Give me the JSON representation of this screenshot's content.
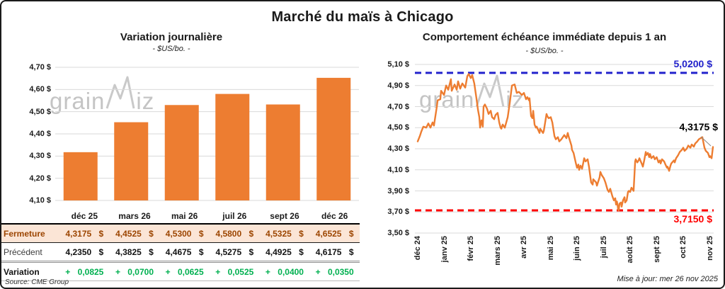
{
  "title": "Marché du maïs à Chicago",
  "source_note": "Source: CME Group",
  "updated_note": "Mise à jour: mer 26 nov 2025",
  "watermark": {
    "prefix": "grain",
    "suffix": "iz"
  },
  "colors": {
    "orange": "#ED7D31",
    "peach_bg": "#FBE5D6",
    "brown": "#9C4500",
    "green": "#00B050",
    "blue": "#2222CC",
    "red": "#FF0000",
    "grid": "#DADADA"
  },
  "table": {
    "columns": [
      "déc 25",
      "mars 26",
      "mai 26",
      "juil 26",
      "sept 26",
      "déc 26"
    ],
    "rows": [
      {
        "key": "fermeture",
        "label": "Fermeture",
        "values": [
          "4,3175 $",
          "4,4525 $",
          "4,5300 $",
          "4,5800 $",
          "4,5325 $",
          "4,6525 $"
        ]
      },
      {
        "key": "precedent",
        "label": "Précédent",
        "values": [
          "4,2350 $",
          "4,3825 $",
          "4,4675 $",
          "4,5275 $",
          "4,4925 $",
          "4,6175 $"
        ]
      },
      {
        "key": "variation",
        "label": "Variation",
        "values": [
          "+ 0,0825",
          "+ 0,0700",
          "+ 0,0625",
          "+ 0,0525",
          "+ 0,0400",
          "+ 0,0350"
        ]
      }
    ]
  },
  "chart_data": [
    {
      "type": "bar",
      "title": "Variation journalière",
      "subtitle": "- $US/bo. -",
      "categories": [
        "déc 25",
        "mars 26",
        "mai 26",
        "juil 26",
        "sept 26",
        "déc 26"
      ],
      "values": [
        4.3175,
        4.4525,
        4.53,
        4.58,
        4.5325,
        4.6525
      ],
      "ylim": [
        4.1,
        4.7
      ],
      "ytick_step": 0.1,
      "ytick_labels": [
        "4,70 $",
        "4,60 $",
        "4,50 $",
        "4,40 $",
        "4,30 $",
        "4,20 $",
        "4,10 $"
      ],
      "bar_color": "#ED7D31",
      "grid": true,
      "legend": "none"
    },
    {
      "type": "line",
      "title": "Comportement échéance immédiate depuis 1 an",
      "subtitle": "- $US/bo. -",
      "x_labels": [
        "déc 24",
        "janv 25",
        "févr 25",
        "mars 25",
        "avr 25",
        "mai 25",
        "juin 25",
        "juil 25",
        "août 25",
        "sept 25",
        "oct 25",
        "nov 25"
      ],
      "ylim": [
        3.5,
        5.1
      ],
      "ytick_step": 0.2,
      "ytick_labels": [
        "5,10 $",
        "4,90 $",
        "4,70 $",
        "4,50 $",
        "4,30 $",
        "4,10 $",
        "3,90 $",
        "3,70 $",
        "3,50 $"
      ],
      "hline_top": {
        "value": 5.02,
        "label": "5,0200 $",
        "color": "#2222CC",
        "style": "dashed"
      },
      "hline_bottom": {
        "value": 3.715,
        "label": "3,7150 $",
        "color": "#FF0000",
        "style": "dashed"
      },
      "last_point": {
        "value": 4.3175,
        "label": "4,3175 $"
      },
      "grid": true,
      "legend": "none",
      "series": [
        {
          "name": "échéance immédiate",
          "color": "#ED7D31",
          "points": [
            [
              0,
              4.37
            ],
            [
              0.08,
              4.42
            ],
            [
              0.13,
              4.46
            ],
            [
              0.21,
              4.51
            ],
            [
              0.32,
              4.5
            ],
            [
              0.4,
              4.54
            ],
            [
              0.48,
              4.5
            ],
            [
              0.56,
              4.55
            ],
            [
              0.61,
              4.52
            ],
            [
              0.72,
              4.7
            ],
            [
              0.75,
              4.76
            ],
            [
              0.85,
              4.77
            ],
            [
              0.88,
              4.85
            ],
            [
              0.99,
              4.81
            ],
            [
              1.07,
              4.9
            ],
            [
              1.15,
              4.86
            ],
            [
              1.25,
              4.96
            ],
            [
              1.28,
              4.85
            ],
            [
              1.39,
              4.91
            ],
            [
              1.47,
              4.86
            ],
            [
              1.52,
              4.94
            ],
            [
              1.6,
              4.87
            ],
            [
              1.68,
              4.92
            ],
            [
              1.79,
              4.88
            ],
            [
              1.87,
              4.99
            ],
            [
              1.92,
              5.01
            ],
            [
              2,
              4.97
            ],
            [
              2.05,
              5.0
            ],
            [
              2.13,
              4.92
            ],
            [
              2.21,
              4.78
            ],
            [
              2.27,
              4.67
            ],
            [
              2.32,
              4.6
            ],
            [
              2.35,
              4.5
            ],
            [
              2.4,
              4.57
            ],
            [
              2.45,
              4.51
            ],
            [
              2.48,
              4.7
            ],
            [
              2.53,
              4.72
            ],
            [
              2.61,
              4.68
            ],
            [
              2.67,
              4.63
            ],
            [
              2.75,
              4.66
            ],
            [
              2.8,
              4.6
            ],
            [
              2.88,
              4.58
            ],
            [
              2.93,
              4.62
            ],
            [
              3.01,
              4.64
            ],
            [
              3.07,
              4.55
            ],
            [
              3.12,
              4.5
            ],
            [
              3.15,
              4.49
            ],
            [
              3.2,
              4.53
            ],
            [
              3.28,
              4.5
            ],
            [
              3.39,
              4.6
            ],
            [
              3.47,
              4.74
            ],
            [
              3.55,
              4.9
            ],
            [
              3.65,
              4.91
            ],
            [
              3.73,
              4.83
            ],
            [
              3.81,
              4.84
            ],
            [
              3.92,
              4.81
            ],
            [
              4,
              4.83
            ],
            [
              4.08,
              4.77
            ],
            [
              4.13,
              4.79
            ],
            [
              4.19,
              4.76
            ],
            [
              4.21,
              4.78
            ],
            [
              4.27,
              4.61
            ],
            [
              4.32,
              4.59
            ],
            [
              4.35,
              4.66
            ],
            [
              4.4,
              4.53
            ],
            [
              4.45,
              4.5
            ],
            [
              4.48,
              4.51
            ],
            [
              4.59,
              4.45
            ],
            [
              4.61,
              4.49
            ],
            [
              4.72,
              4.45
            ],
            [
              4.75,
              4.47
            ],
            [
              4.85,
              4.63
            ],
            [
              4.88,
              4.61
            ],
            [
              4.93,
              4.59
            ],
            [
              5.01,
              4.6
            ],
            [
              5.07,
              4.55
            ],
            [
              5.15,
              4.42
            ],
            [
              5.2,
              4.39
            ],
            [
              5.28,
              4.41
            ],
            [
              5.33,
              4.37
            ],
            [
              5.41,
              4.39
            ],
            [
              5.52,
              4.43
            ],
            [
              5.6,
              4.4
            ],
            [
              5.65,
              4.45
            ],
            [
              5.68,
              4.42
            ],
            [
              5.79,
              4.33
            ],
            [
              5.81,
              4.29
            ],
            [
              5.87,
              4.26
            ],
            [
              5.95,
              4.17
            ],
            [
              6,
              4.12
            ],
            [
              6.05,
              4.15
            ],
            [
              6.08,
              4.1
            ],
            [
              6.13,
              4.14
            ],
            [
              6.19,
              4.11
            ],
            [
              6.27,
              4.21
            ],
            [
              6.32,
              4.18
            ],
            [
              6.4,
              4.2
            ],
            [
              6.45,
              4.13
            ],
            [
              6.53,
              3.98
            ],
            [
              6.59,
              3.96
            ],
            [
              6.61,
              4.01
            ],
            [
              6.72,
              3.98
            ],
            [
              6.75,
              3.95
            ],
            [
              6.85,
              4.03
            ],
            [
              6.88,
              4.08
            ],
            [
              6.93,
              4.05
            ],
            [
              7.01,
              4.02
            ],
            [
              7.07,
              3.98
            ],
            [
              7.15,
              3.91
            ],
            [
              7.2,
              3.89
            ],
            [
              7.25,
              3.92
            ],
            [
              7.33,
              3.85
            ],
            [
              7.39,
              3.81
            ],
            [
              7.44,
              3.83
            ],
            [
              7.47,
              3.77
            ],
            [
              7.5,
              3.8
            ],
            [
              7.53,
              3.76
            ],
            [
              7.55,
              3.72
            ],
            [
              7.57,
              3.715
            ],
            [
              7.6,
              3.78
            ],
            [
              7.65,
              3.79
            ],
            [
              7.68,
              3.75
            ],
            [
              7.73,
              3.81
            ],
            [
              7.79,
              3.84
            ],
            [
              7.81,
              3.79
            ],
            [
              7.87,
              3.81
            ],
            [
              7.92,
              3.89
            ],
            [
              7.95,
              3.9
            ],
            [
              8,
              3.89
            ],
            [
              8.05,
              3.93
            ],
            [
              8.08,
              3.92
            ],
            [
              8.13,
              3.9
            ],
            [
              8.19,
              4.18
            ],
            [
              8.21,
              4.2
            ],
            [
              8.27,
              4.17
            ],
            [
              8.32,
              4.19
            ],
            [
              8.35,
              4.21
            ],
            [
              8.45,
              4.15
            ],
            [
              8.48,
              4.13
            ],
            [
              8.53,
              4.19
            ],
            [
              8.59,
              4.27
            ],
            [
              8.61,
              4.24
            ],
            [
              8.67,
              4.26
            ],
            [
              8.72,
              4.22
            ],
            [
              8.75,
              4.25
            ],
            [
              8.8,
              4.21
            ],
            [
              8.88,
              4.23
            ],
            [
              8.93,
              4.2
            ],
            [
              9,
              4.22
            ],
            [
              9.07,
              4.17
            ],
            [
              9.12,
              4.19
            ],
            [
              9.15,
              4.16
            ],
            [
              9.2,
              4.2
            ],
            [
              9.28,
              4.18
            ],
            [
              9.33,
              4.15
            ],
            [
              9.39,
              4.12
            ],
            [
              9.41,
              4.13
            ],
            [
              9.47,
              4.09
            ],
            [
              9.52,
              4.14
            ],
            [
              9.55,
              4.16
            ],
            [
              9.65,
              4.19
            ],
            [
              9.68,
              4.17
            ],
            [
              9.73,
              4.21
            ],
            [
              9.81,
              4.24
            ],
            [
              9.87,
              4.27
            ],
            [
              9.95,
              4.29
            ],
            [
              10,
              4.31
            ],
            [
              10.05,
              4.28
            ],
            [
              10.13,
              4.3
            ],
            [
              10.19,
              4.33
            ],
            [
              10.27,
              4.31
            ],
            [
              10.32,
              4.34
            ],
            [
              10.4,
              4.32
            ],
            [
              10.45,
              4.35
            ],
            [
              10.53,
              4.37
            ],
            [
              10.59,
              4.39
            ],
            [
              10.72,
              4.41
            ],
            [
              10.8,
              4.31
            ],
            [
              10.85,
              4.28
            ],
            [
              10.93,
              4.26
            ],
            [
              10.99,
              4.22
            ],
            [
              11.01,
              4.23
            ],
            [
              11.07,
              4.21
            ],
            [
              11.12,
              4.3175
            ]
          ]
        }
      ]
    }
  ]
}
